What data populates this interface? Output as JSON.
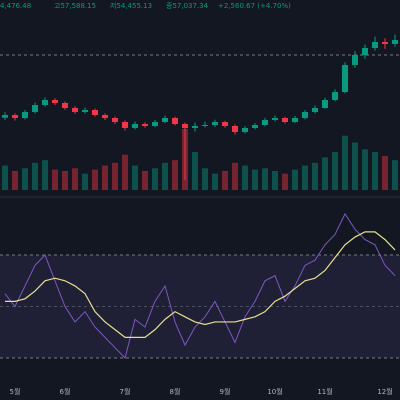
{
  "chart_data": {
    "type": "candlestick",
    "header": [
      "4,476.48",
      "고57,588.15",
      "저54,455.13",
      "종57,037.34",
      "+2,560.67 (+4.70%)"
    ],
    "categories": [
      null,
      "5월",
      null,
      null,
      null,
      null,
      "6월",
      null,
      null,
      null,
      null,
      null,
      "7월",
      null,
      null,
      null,
      null,
      "8월",
      null,
      null,
      null,
      null,
      "9월",
      null,
      null,
      null,
      null,
      "10월",
      null,
      null,
      null,
      null,
      "11월",
      null,
      null,
      null,
      null,
      null,
      "12월",
      null
    ],
    "open": [
      61000,
      62250,
      60900,
      63600,
      66750,
      69000,
      67650,
      65400,
      63600,
      64500,
      62250,
      60900,
      59100,
      56400,
      58200,
      57300,
      59100,
      60900,
      58200,
      56400,
      57300,
      57750,
      59100,
      57300,
      54600,
      56400,
      57750,
      60000,
      60900,
      59100,
      60900,
      63600,
      65400,
      69000,
      72600,
      84750,
      89250,
      92400,
      95100,
      94200
    ],
    "high": [
      63500,
      63000,
      64500,
      67800,
      70200,
      69800,
      68300,
      66200,
      65600,
      65200,
      63000,
      61500,
      59800,
      59300,
      59000,
      60000,
      62000,
      61500,
      58800,
      58900,
      59200,
      60100,
      59600,
      58000,
      57200,
      58600,
      61000,
      62000,
      61400,
      61800,
      64500,
      66500,
      70000,
      73800,
      86000,
      91000,
      94000,
      97500,
      96800,
      98500
    ],
    "low": [
      60000,
      59800,
      60200,
      63000,
      66000,
      66800,
      64600,
      62800,
      62900,
      61500,
      60000,
      58200,
      55300,
      55800,
      56500,
      56800,
      58600,
      57500,
      33000,
      54800,
      56600,
      57000,
      56500,
      53500,
      53900,
      55800,
      57200,
      59400,
      58400,
      58700,
      60300,
      63000,
      65000,
      68400,
      72000,
      83500,
      87500,
      91200,
      92000,
      93000
    ],
    "close": [
      62250,
      60900,
      63600,
      66750,
      69000,
      67650,
      65400,
      63600,
      64500,
      62250,
      60900,
      59100,
      56400,
      58200,
      57300,
      59100,
      60900,
      58200,
      56400,
      57300,
      57750,
      59100,
      57300,
      54600,
      56400,
      57750,
      60000,
      60900,
      59100,
      60900,
      63600,
      65400,
      69000,
      72600,
      84750,
      89250,
      92400,
      95100,
      94200,
      96000
    ],
    "ylim": [
      26250,
      114000
    ],
    "reference_line": 89250,
    "up_color": "#089981",
    "down_color": "#f23645",
    "volume": [
      18,
      14,
      16,
      20,
      22,
      15,
      14,
      16,
      12,
      15,
      18,
      20,
      26,
      18,
      14,
      16,
      20,
      22,
      45,
      28,
      16,
      12,
      14,
      20,
      18,
      15,
      16,
      14,
      12,
      15,
      18,
      20,
      24,
      28,
      40,
      35,
      30,
      28,
      25,
      22
    ],
    "volume_ylim": [
      0,
      140
    ],
    "rsi": {
      "name": "RSI",
      "color": "#7e57c2",
      "values": [
        55,
        50,
        58,
        66,
        70,
        60,
        50,
        44,
        48,
        42,
        38,
        34,
        30,
        45,
        42,
        52,
        58,
        44,
        35,
        42,
        46,
        52,
        44,
        36,
        46,
        52,
        60,
        62,
        52,
        58,
        66,
        68,
        74,
        78,
        86,
        80,
        76,
        74,
        66,
        62
      ]
    },
    "rsi_ma": {
      "name": "RSI MA",
      "color": "#e8df8e",
      "values": [
        52,
        52,
        53,
        56,
        60,
        61,
        60,
        58,
        55,
        48,
        44,
        41,
        38,
        38,
        38,
        41,
        45,
        48,
        46,
        44,
        43,
        44,
        44,
        44,
        45,
        46,
        48,
        52,
        54,
        57,
        60,
        61,
        64,
        69,
        74,
        77,
        79,
        79,
        76,
        72
      ]
    },
    "rsi_ylim": [
      15.6,
      91.4
    ],
    "rsi_ticks": [
      30,
      50,
      70
    ]
  }
}
